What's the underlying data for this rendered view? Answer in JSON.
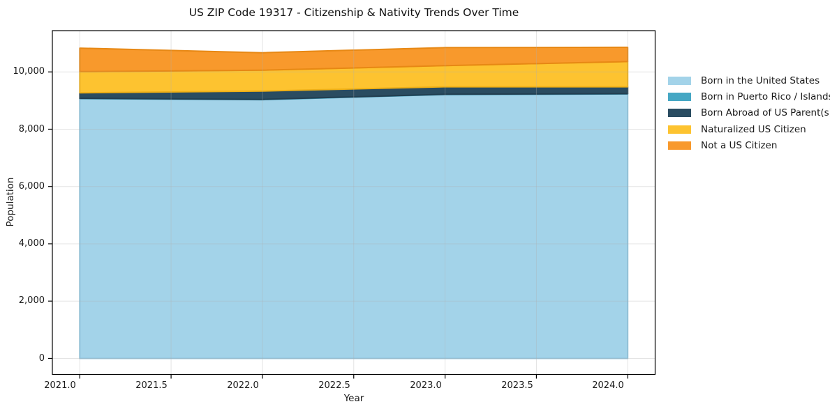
{
  "chart_data": {
    "type": "area",
    "stacked": true,
    "title": "US ZIP Code 19317 - Citizenship & Nativity Trends Over Time",
    "xlabel": "Year",
    "ylabel": "Population",
    "x": [
      2021,
      2022,
      2023,
      2024
    ],
    "series": [
      {
        "name": "Born in the United States",
        "color": "#a3d3e9",
        "edge": "#8cc3de",
        "values": [
          9070,
          9030,
          9210,
          9230
        ]
      },
      {
        "name": "Born in Puerto Rico / Islands",
        "color": "#45a7c4",
        "edge": "#3b96b2",
        "values": [
          10,
          10,
          10,
          10
        ]
      },
      {
        "name": "Born Abroad of US Parent(s)",
        "color": "#2a4c61",
        "edge": "#223e50",
        "values": [
          190,
          290,
          260,
          240
        ]
      },
      {
        "name": "Naturalized US Citizen",
        "color": "#fdc330",
        "edge": "#f0b015",
        "values": [
          740,
          730,
          740,
          880
        ]
      },
      {
        "name": "Not a US Citizen",
        "color": "#f8992c",
        "edge": "#e78814",
        "values": [
          820,
          610,
          630,
          500
        ]
      }
    ],
    "totals": [
      10830,
      10670,
      10840,
      10860
    ],
    "xlim": [
      2020.85,
      2024.15
    ],
    "ylim": [
      -560,
      11440
    ],
    "x_ticks": [
      2021.0,
      2021.5,
      2022.0,
      2022.5,
      2023.0,
      2023.5,
      2024.0
    ],
    "x_tick_labels": [
      "2021.0",
      "2021.5",
      "2022.0",
      "2022.5",
      "2023.0",
      "2023.5",
      "2024.0"
    ],
    "y_ticks": [
      0,
      2000,
      4000,
      6000,
      8000,
      10000
    ],
    "y_tick_labels": [
      "0",
      "2,000",
      "4,000",
      "6,000",
      "8,000",
      "10,000"
    ],
    "grid": true,
    "grid_color": "#b0b0b0",
    "grid_opacity": 0.35,
    "axis_color": "#000000",
    "legend_position": "right-outside"
  }
}
